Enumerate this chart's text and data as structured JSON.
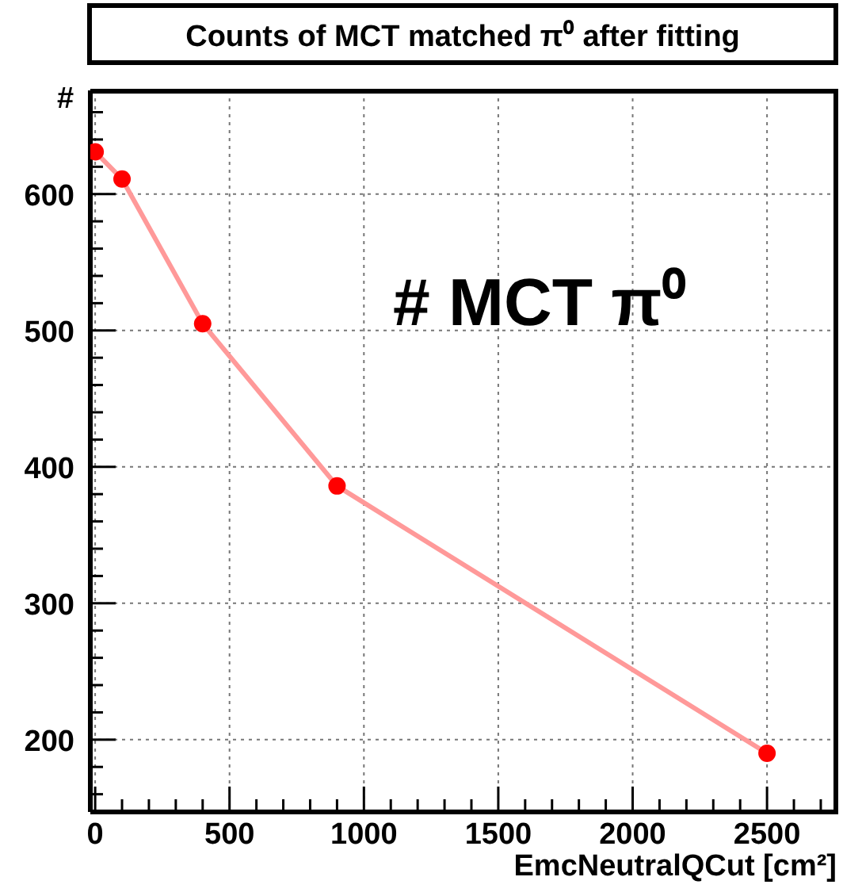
{
  "chart_data": {
    "type": "line",
    "title": "Counts of MCT matched π⁰ after fitting",
    "xlabel": "EmcNeutralQCut [cm²]",
    "ylabel": "#",
    "annotations": [
      "# MCT π⁰"
    ],
    "x": [
      0,
      100,
      400,
      900,
      2500
    ],
    "series": [
      {
        "color": "#ff9999",
        "colors": [
          "#ff0000",
          "#ff0000",
          "#ff0000",
          "#ff0000",
          "#ff0000"
        ],
        "values": [
          631,
          611,
          505,
          386,
          190
        ]
      }
    ],
    "xlim": [
      -18,
      2765
    ],
    "xticks": [
      0,
      {
        "value": 100,
        "label": null
      },
      {
        "value": 200,
        "label": null
      },
      {
        "value": 300,
        "label": null
      },
      {
        "value": 400,
        "label": null
      },
      500,
      {
        "value": 600,
        "label": null
      },
      {
        "value": 700,
        "label": null
      },
      {
        "value": 800,
        "label": null
      },
      {
        "value": 900,
        "label": null
      },
      1000,
      {
        "value": 1100,
        "label": null
      },
      {
        "value": 1200,
        "label": null
      },
      {
        "value": 1300,
        "label": null
      },
      {
        "value": 1400,
        "label": null
      },
      1500,
      {
        "value": 1600,
        "label": null
      },
      {
        "value": 1700,
        "label": null
      },
      {
        "value": 1800,
        "label": null
      },
      {
        "value": 1900,
        "label": null
      },
      2000,
      {
        "value": 2100,
        "label": null
      },
      {
        "value": 2200,
        "label": null
      },
      {
        "value": 2300,
        "label": null
      },
      {
        "value": 2400,
        "label": null
      },
      2500,
      {
        "value": 2600,
        "label": null
      },
      {
        "value": 2700,
        "label": null
      }
    ],
    "ylim": [
      147,
      676
    ],
    "yticks": [
      {
        "value": 160,
        "label": null
      },
      {
        "value": 180,
        "label": null
      },
      200,
      {
        "value": 220,
        "label": null
      },
      {
        "value": 240,
        "label": null
      },
      {
        "value": 260,
        "label": null
      },
      {
        "value": 280,
        "label": null
      },
      300,
      {
        "value": 320,
        "label": null
      },
      {
        "value": 340,
        "label": null
      },
      {
        "value": 360,
        "label": null
      },
      {
        "value": 380,
        "label": null
      },
      400,
      {
        "value": 420,
        "label": null
      },
      {
        "value": 440,
        "label": null
      },
      {
        "value": 460,
        "label": null
      },
      {
        "value": 480,
        "label": null
      },
      500,
      {
        "value": 520,
        "label": null
      },
      {
        "value": 540,
        "label": null
      },
      {
        "value": 560,
        "label": null
      },
      {
        "value": 580,
        "label": null
      },
      600,
      {
        "value": 620,
        "label": null
      },
      {
        "value": 640,
        "label": null
      },
      {
        "value": 660,
        "label": null
      }
    ],
    "grid": true,
    "marker": "circle",
    "legend": false
  }
}
